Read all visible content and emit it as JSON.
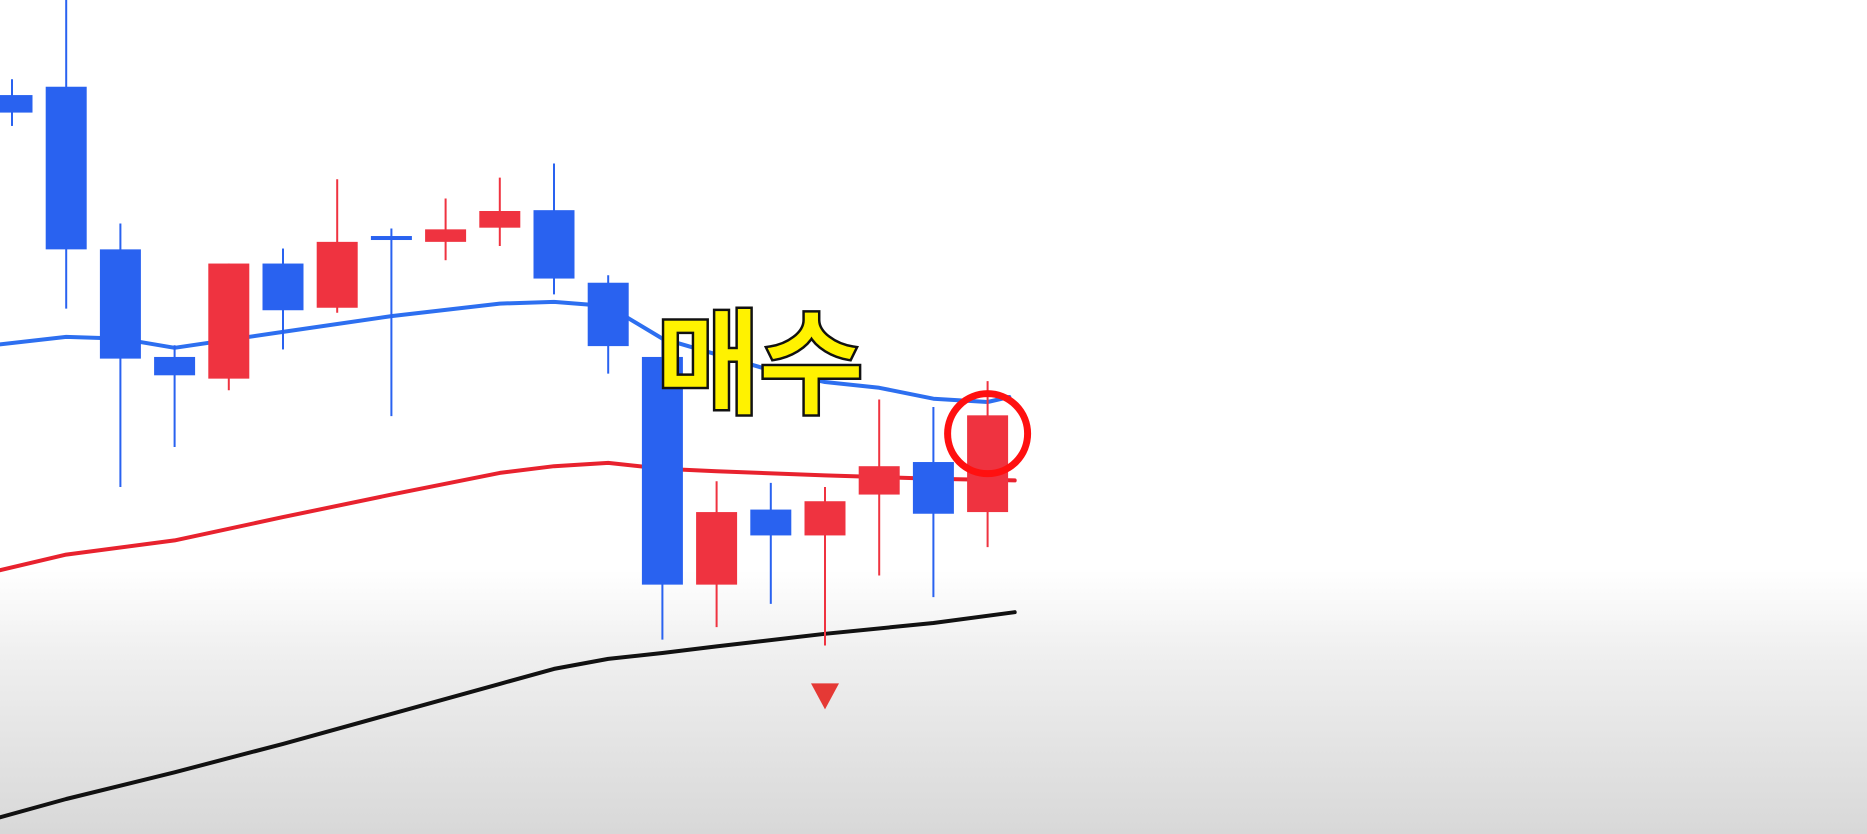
{
  "chart_data": {
    "type": "candlestick",
    "title": "",
    "xlabel": "",
    "ylabel": "",
    "grid": false,
    "legend": "none",
    "colors": {
      "up": "#ef3340",
      "down": "#2962f0",
      "ma_short": "#2d6ff0",
      "ma_mid": "#e8222e",
      "ma_long": "#111111",
      "circle": "#ff1010",
      "label_fill": "#fff200",
      "label_stroke": "#111111",
      "marker": "#e53935"
    },
    "ylim": [
      0,
      100
    ],
    "candles": [
      {
        "i": 0,
        "open": 88.6,
        "close": 86.5,
        "high": 90.5,
        "low": 84.9
      },
      {
        "i": 1,
        "open": 89.6,
        "close": 70.1,
        "high": 104.3,
        "low": 63.0
      },
      {
        "i": 2,
        "open": 70.1,
        "close": 57.0,
        "high": 73.2,
        "low": 41.6
      },
      {
        "i": 3,
        "open": 57.2,
        "close": 55.0,
        "high": 58.6,
        "low": 46.4
      },
      {
        "i": 4,
        "open": 54.6,
        "close": 68.4,
        "high": 68.4,
        "low": 53.2
      },
      {
        "i": 5,
        "open": 68.4,
        "close": 62.8,
        "high": 70.2,
        "low": 58.1
      },
      {
        "i": 6,
        "open": 63.1,
        "close": 71.0,
        "high": 78.5,
        "low": 62.5
      },
      {
        "i": 7,
        "open": 71.7,
        "close": 71.4,
        "high": 72.6,
        "low": 50.1
      },
      {
        "i": 8,
        "open": 71.0,
        "close": 72.5,
        "high": 76.2,
        "low": 68.8
      },
      {
        "i": 9,
        "open": 72.7,
        "close": 74.7,
        "high": 78.7,
        "low": 70.5
      },
      {
        "i": 10,
        "open": 74.8,
        "close": 66.6,
        "high": 80.4,
        "low": 64.7
      },
      {
        "i": 11,
        "open": 66.1,
        "close": 58.5,
        "high": 67.0,
        "low": 55.2
      },
      {
        "i": 12,
        "open": 57.2,
        "close": 29.9,
        "high": 59.6,
        "low": 23.3
      },
      {
        "i": 13,
        "open": 29.9,
        "close": 38.6,
        "high": 42.3,
        "low": 24.8
      },
      {
        "i": 14,
        "open": 38.9,
        "close": 35.8,
        "high": 42.1,
        "low": 27.6
      },
      {
        "i": 15,
        "open": 35.8,
        "close": 39.9,
        "high": 41.6,
        "low": 22.6
      },
      {
        "i": 16,
        "open": 40.7,
        "close": 44.1,
        "high": 52.1,
        "low": 31.0
      },
      {
        "i": 17,
        "open": 44.6,
        "close": 38.4,
        "high": 51.2,
        "low": 28.4
      },
      {
        "i": 18,
        "open": 38.6,
        "close": 50.2,
        "high": 54.3,
        "low": 34.4
      }
    ],
    "ma_short": [
      [
        -0.5,
        58.5
      ],
      [
        1,
        59.6
      ],
      [
        2,
        59.4
      ],
      [
        3,
        58.3
      ],
      [
        5,
        60.2
      ],
      [
        7,
        62.1
      ],
      [
        9,
        63.6
      ],
      [
        10,
        63.8
      ],
      [
        11,
        63.3
      ],
      [
        12,
        59.4
      ],
      [
        13,
        57.5
      ],
      [
        14,
        55.6
      ],
      [
        15,
        54.2
      ],
      [
        16,
        53.5
      ],
      [
        17,
        52.2
      ],
      [
        18,
        51.8
      ],
      [
        18.4,
        52.4
      ]
    ],
    "ma_mid": [
      [
        -0.5,
        31.2
      ],
      [
        1,
        33.5
      ],
      [
        3,
        35.2
      ],
      [
        5,
        38.0
      ],
      [
        7,
        40.7
      ],
      [
        9,
        43.3
      ],
      [
        10,
        44.1
      ],
      [
        11,
        44.5
      ],
      [
        12,
        43.8
      ],
      [
        13,
        43.5
      ],
      [
        15,
        43.0
      ],
      [
        17,
        42.6
      ],
      [
        18.5,
        42.4
      ]
    ],
    "ma_long": [
      [
        -0.5,
        1.5
      ],
      [
        1,
        4.2
      ],
      [
        3,
        7.4
      ],
      [
        5,
        10.8
      ],
      [
        7,
        14.4
      ],
      [
        9,
        18.0
      ],
      [
        10,
        19.8
      ],
      [
        11,
        21.0
      ],
      [
        12,
        21.7
      ],
      [
        13,
        22.5
      ],
      [
        15,
        24.0
      ],
      [
        17,
        25.3
      ],
      [
        18.5,
        26.6
      ]
    ],
    "marker": {
      "i": 15,
      "y": 16.5
    },
    "highlight": {
      "i": 18,
      "y": 48.0
    },
    "annotations": [
      {
        "text": "매수",
        "i": 13.8,
        "y": 56.4
      }
    ]
  }
}
